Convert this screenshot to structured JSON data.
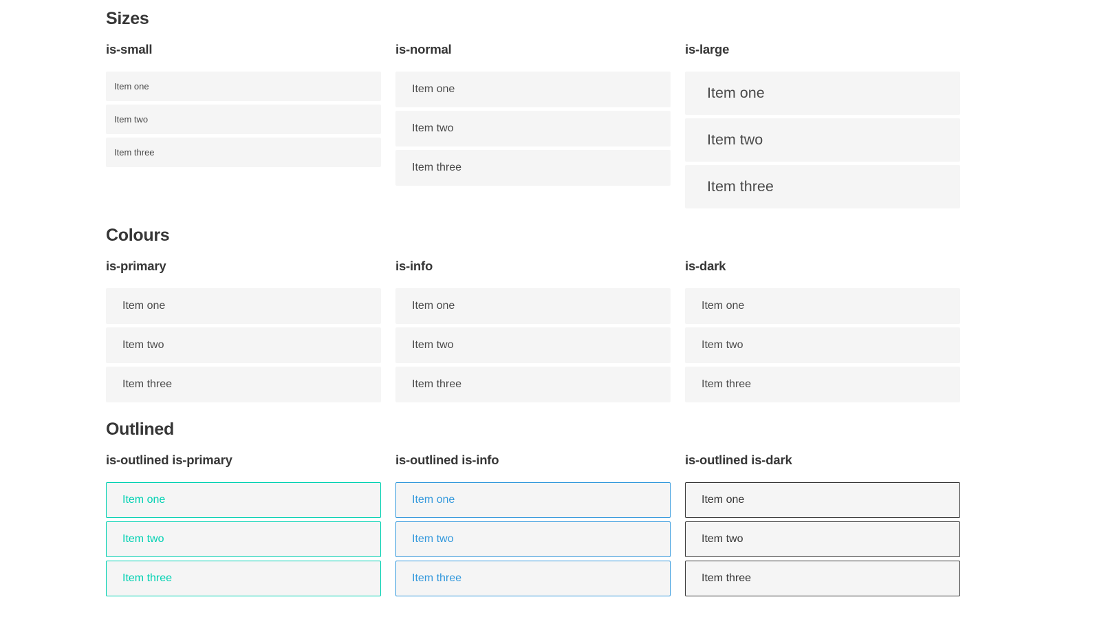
{
  "page": {
    "sections": [
      {
        "title": "Sizes",
        "groups": [
          {
            "label": "is-small",
            "items": [
              "Item one",
              "Item two",
              "Item three"
            ]
          },
          {
            "label": "is-normal",
            "items": [
              "Item one",
              "Item two",
              "Item three"
            ]
          },
          {
            "label": "is-large",
            "items": [
              "Item one",
              "Item two",
              "Item three"
            ]
          }
        ]
      },
      {
        "title": "Colours",
        "groups": [
          {
            "label": "is-primary",
            "items": [
              "Item one",
              "Item two",
              "Item three"
            ]
          },
          {
            "label": "is-info",
            "items": [
              "Item one",
              "Item two",
              "Item three"
            ]
          },
          {
            "label": "is-dark",
            "items": [
              "Item one",
              "Item two",
              "Item three"
            ]
          }
        ]
      },
      {
        "title": "Outlined",
        "groups": [
          {
            "label": "is-outlined is-primary",
            "items": [
              "Item one",
              "Item two",
              "Item three"
            ]
          },
          {
            "label": "is-outlined is-info",
            "items": [
              "Item one",
              "Item two",
              "Item three"
            ]
          },
          {
            "label": "is-outlined is-dark",
            "items": [
              "Item one",
              "Item two",
              "Item three"
            ]
          }
        ]
      }
    ]
  },
  "colors": {
    "primary": "#00d1b2",
    "info": "#3298dc",
    "dark": "#363636",
    "item-bg": "#f5f5f5",
    "item-text": "#4a4a4a",
    "item-text-inverse": "#ffffff",
    "heading": "#363636"
  }
}
